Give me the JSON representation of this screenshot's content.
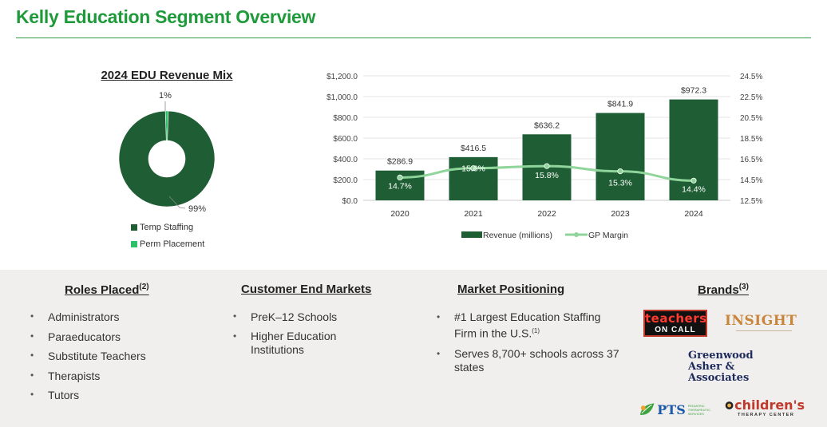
{
  "header": {
    "title": "Kelly Education Segment Overview"
  },
  "revenue_mix": {
    "title": "2024 EDU Revenue Mix",
    "slices": [
      {
        "label": "Temp Staffing",
        "value": 99,
        "pct_label": "99%",
        "color": "#1f5d34"
      },
      {
        "label": "Perm Placement",
        "value": 1,
        "pct_label": "1%",
        "color": "#2fc16a"
      }
    ]
  },
  "chart_data": {
    "type": "bar",
    "categories": [
      "2020",
      "2021",
      "2022",
      "2023",
      "2024"
    ],
    "series": [
      {
        "name": "Revenue (millions)",
        "type": "bar",
        "axis": "left",
        "color": "#1f5d34",
        "values": [
          286.9,
          416.5,
          636.2,
          841.9,
          972.3
        ],
        "labels": [
          "$286.9",
          "$416.5",
          "$636.2",
          "$841.9",
          "$972.3"
        ]
      },
      {
        "name": "GP Margin",
        "type": "line",
        "axis": "right",
        "color": "#8fd49a",
        "values": [
          14.7,
          15.6,
          15.8,
          15.3,
          14.4
        ],
        "labels": [
          "14.7%",
          "15.6%",
          "15.8%",
          "15.3%",
          "14.4%"
        ]
      }
    ],
    "y_left": {
      "min": 0,
      "max": 1200,
      "ticks": [
        "$0.0",
        "$200.0",
        "$400.0",
        "$600.0",
        "$800.0",
        "$1,000.0",
        "$1,200.0"
      ]
    },
    "y_right": {
      "min": 12.5,
      "max": 24.5,
      "ticks": [
        "12.5%",
        "14.5%",
        "16.5%",
        "18.5%",
        "20.5%",
        "22.5%",
        "24.5%"
      ]
    },
    "grid": true,
    "legend": "bottom"
  },
  "roles": {
    "title": "Roles Placed",
    "note": "(2)",
    "items": [
      "Administrators",
      "Paraeducators",
      "Substitute Teachers",
      "Therapists",
      "Tutors"
    ]
  },
  "markets": {
    "title": "Customer End Markets",
    "items": [
      "PreK–12 Schools",
      "Higher Education Institutions"
    ]
  },
  "positioning": {
    "title": "Market Positioning",
    "item1": "#1 Largest Education Staffing Firm in the U.S.",
    "item1_note": "(1)",
    "item2": "Serves 8,700+ schools across 37 states"
  },
  "brands": {
    "title": "Brands",
    "note": "(3)",
    "teachers_top": "teachers",
    "teachers_bottom": "ON CALL",
    "insight": "INSIGHT",
    "greenwood_line1": "Greenwood",
    "greenwood_line2": "Asher &",
    "greenwood_line3": "Associates",
    "pts": "PTS",
    "pts_sub1": "PEDIATRIC",
    "pts_sub2": "THERAPEUTIC",
    "pts_sub3": "SERVICES",
    "childrens": "children's",
    "childrens_sub": "THERAPY CENTER"
  }
}
